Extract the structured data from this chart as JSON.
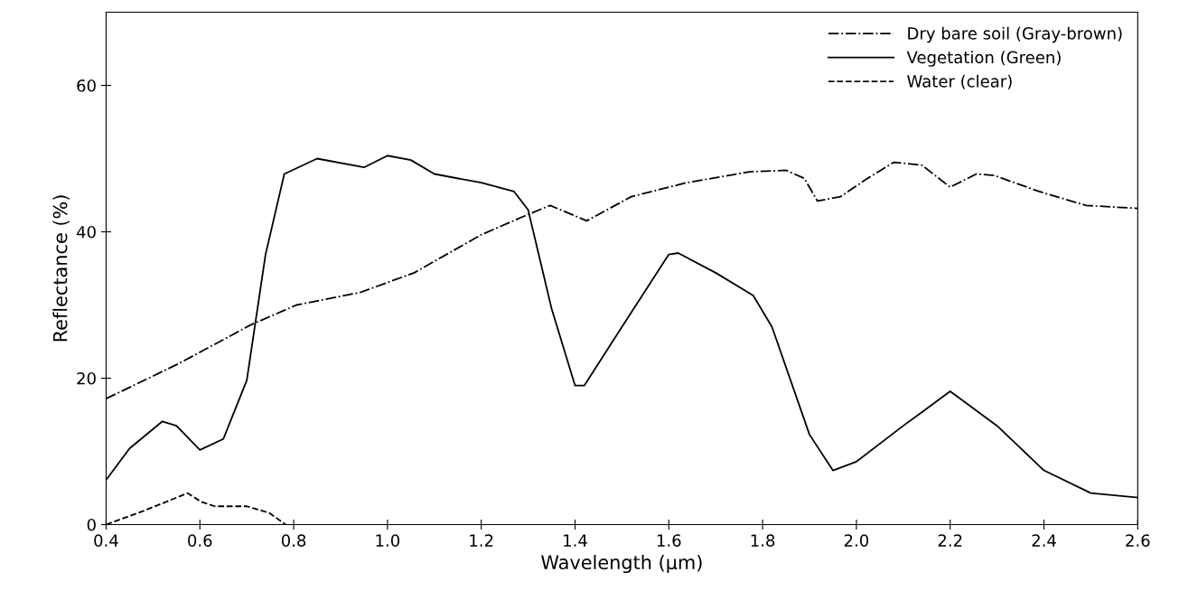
{
  "chart_data": {
    "type": "line",
    "xlabel": "Wavelength (μm)",
    "ylabel": "Reflectance (%)",
    "xlim": [
      0.4,
      2.6
    ],
    "ylim": [
      0,
      70
    ],
    "xticks": [
      0.4,
      0.6,
      0.8,
      {
        "value": 1,
        "label": "1.0"
      },
      1.2,
      1.4,
      1.6,
      1.8,
      {
        "value": 2,
        "label": "2.0"
      },
      2.2,
      2.4,
      2.6
    ],
    "yticks": [
      0,
      20,
      40,
      60
    ],
    "grid": false,
    "legend": "top right",
    "marker": "none",
    "series": [
      {
        "name": "Dry bare soil (Gray-brown)",
        "color": "#000000",
        "line_style": "dashdot",
        "x": [
          0.4,
          0.555,
          0.709,
          0.806,
          0.941,
          1.057,
          1.2,
          1.29,
          1.347,
          1.425,
          1.52,
          1.637,
          1.772,
          1.85,
          1.889,
          1.917,
          1.966,
          2.024,
          2.08,
          2.14,
          2.2,
          2.256,
          2.294,
          2.39,
          2.49,
          2.6
        ],
        "values": [
          17.2,
          22,
          27.3,
          30,
          31.7,
          34.4,
          39.6,
          42.1,
          43.6,
          41.5,
          44.8,
          46.7,
          48.2,
          48.4,
          47.3,
          44.2,
          44.8,
          47.3,
          49.5,
          49.1,
          46.1,
          47.9,
          47.7,
          45.5,
          43.6,
          43.2
        ]
      },
      {
        "name": "Vegetation (Green)",
        "color": "#000000",
        "line_style": "solid",
        "x": [
          0.4,
          0.45,
          0.52,
          0.55,
          0.6,
          0.65,
          0.7,
          0.74,
          0.78,
          0.85,
          0.95,
          1.0,
          1.05,
          1.1,
          1.2,
          1.27,
          1.3,
          1.35,
          1.4,
          1.42,
          1.5,
          1.6,
          1.62,
          1.7,
          1.78,
          1.82,
          1.9,
          1.95,
          2.0,
          2.1,
          2.2,
          2.3,
          2.4,
          2.5,
          2.6
        ],
        "values": [
          6.1,
          10.4,
          14.1,
          13.5,
          10.2,
          11.7,
          19.7,
          36.9,
          47.9,
          50,
          48.8,
          50.4,
          49.8,
          47.9,
          46.7,
          45.5,
          43,
          29.5,
          19,
          19,
          27,
          36.9,
          37.1,
          34.4,
          31.3,
          27,
          12.3,
          7.4,
          8.6,
          13.5,
          18.2,
          13.5,
          7.4,
          4.3,
          3.7
        ]
      },
      {
        "name": "Water (clear)",
        "color": "#000000",
        "line_style": "dashed",
        "x": [
          0.4,
          0.477,
          0.574,
          0.603,
          0.632,
          0.7,
          0.748,
          0.783
        ],
        "values": [
          0,
          1.8,
          4.3,
          3.1,
          2.5,
          2.5,
          1.6,
          0
        ]
      }
    ]
  }
}
